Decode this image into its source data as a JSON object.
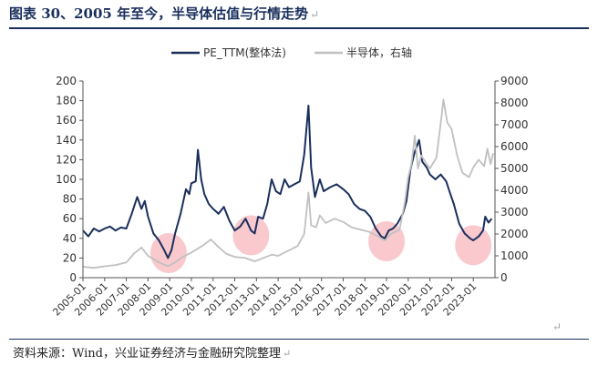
{
  "title": "图表 30、2005 年至今，半导体估值与行情走势",
  "source_note": "资料来源：Wind，兴业证券经济与金融研究院整理",
  "paragraph_mark": "↵",
  "colors": {
    "pe": "#1a2f5c",
    "index": "#c0c0c0",
    "highlight": "#f7b7bd",
    "title": "#1a2f5c"
  },
  "chart_data": {
    "type": "line",
    "title": "",
    "legend_position": "top-center",
    "x_ticks": [
      "2005-01",
      "2006-01",
      "2007-01",
      "2008-01",
      "2009-01",
      "2010-01",
      "2011-01",
      "2012-01",
      "2013-01",
      "2014-01",
      "2015-01",
      "2016-01",
      "2017-01",
      "2018-01",
      "2019-01",
      "2020-01",
      "2021-01",
      "2022-01",
      "2023-01"
    ],
    "y_left": {
      "min": 0,
      "max": 200,
      "step": 20,
      "ticks": [
        "0",
        "20",
        "40",
        "60",
        "80",
        "100",
        "120",
        "140",
        "160",
        "180",
        "200"
      ]
    },
    "y_right": {
      "min": 0,
      "max": 9000,
      "step": 1000,
      "ticks": [
        "0",
        "1000",
        "2000",
        "3000",
        "4000",
        "5000",
        "6000",
        "7000",
        "8000",
        "9000"
      ]
    },
    "series": [
      {
        "name": "PE_TTM(整体法)",
        "axis": "left",
        "color": "#1a2f5c",
        "points": [
          [
            2005.0,
            48
          ],
          [
            2005.25,
            42
          ],
          [
            2005.5,
            50
          ],
          [
            2005.75,
            47
          ],
          [
            2006.0,
            50
          ],
          [
            2006.25,
            52
          ],
          [
            2006.5,
            48
          ],
          [
            2006.75,
            51
          ],
          [
            2007.0,
            50
          ],
          [
            2007.25,
            65
          ],
          [
            2007.5,
            82
          ],
          [
            2007.7,
            70
          ],
          [
            2007.85,
            78
          ],
          [
            2008.0,
            62
          ],
          [
            2008.25,
            45
          ],
          [
            2008.5,
            38
          ],
          [
            2008.75,
            28
          ],
          [
            2008.92,
            20
          ],
          [
            2009.08,
            28
          ],
          [
            2009.25,
            45
          ],
          [
            2009.5,
            65
          ],
          [
            2009.75,
            90
          ],
          [
            2009.9,
            85
          ],
          [
            2010.0,
            96
          ],
          [
            2010.2,
            98
          ],
          [
            2010.3,
            130
          ],
          [
            2010.45,
            100
          ],
          [
            2010.6,
            85
          ],
          [
            2010.8,
            75
          ],
          [
            2011.0,
            70
          ],
          [
            2011.25,
            65
          ],
          [
            2011.5,
            72
          ],
          [
            2011.75,
            58
          ],
          [
            2012.0,
            48
          ],
          [
            2012.25,
            52
          ],
          [
            2012.5,
            60
          ],
          [
            2012.75,
            48
          ],
          [
            2012.92,
            45
          ],
          [
            2013.08,
            62
          ],
          [
            2013.3,
            60
          ],
          [
            2013.5,
            75
          ],
          [
            2013.7,
            100
          ],
          [
            2013.9,
            88
          ],
          [
            2014.1,
            85
          ],
          [
            2014.3,
            100
          ],
          [
            2014.5,
            92
          ],
          [
            2014.75,
            95
          ],
          [
            2015.0,
            98
          ],
          [
            2015.2,
            125
          ],
          [
            2015.4,
            175
          ],
          [
            2015.52,
            112
          ],
          [
            2015.7,
            82
          ],
          [
            2015.92,
            100
          ],
          [
            2016.1,
            88
          ],
          [
            2016.4,
            92
          ],
          [
            2016.7,
            95
          ],
          [
            2017.0,
            90
          ],
          [
            2017.25,
            85
          ],
          [
            2017.5,
            75
          ],
          [
            2017.75,
            70
          ],
          [
            2018.0,
            68
          ],
          [
            2018.25,
            62
          ],
          [
            2018.5,
            50
          ],
          [
            2018.75,
            42
          ],
          [
            2018.92,
            40
          ],
          [
            2019.1,
            48
          ],
          [
            2019.3,
            50
          ],
          [
            2019.5,
            55
          ],
          [
            2019.75,
            65
          ],
          [
            2019.92,
            78
          ],
          [
            2020.1,
            110
          ],
          [
            2020.3,
            128
          ],
          [
            2020.5,
            140
          ],
          [
            2020.65,
            118
          ],
          [
            2020.85,
            112
          ],
          [
            2021.0,
            105
          ],
          [
            2021.25,
            100
          ],
          [
            2021.5,
            105
          ],
          [
            2021.75,
            98
          ],
          [
            2021.9,
            88
          ],
          [
            2022.1,
            75
          ],
          [
            2022.35,
            55
          ],
          [
            2022.6,
            45
          ],
          [
            2022.85,
            40
          ],
          [
            2023.0,
            38
          ],
          [
            2023.25,
            42
          ],
          [
            2023.45,
            48
          ],
          [
            2023.55,
            62
          ],
          [
            2023.7,
            56
          ],
          [
            2023.85,
            60
          ]
        ]
      },
      {
        "name": "半导体，右轴",
        "axis": "right",
        "color": "#c0c0c0",
        "points": [
          [
            2005.0,
            500
          ],
          [
            2005.5,
            450
          ],
          [
            2006.0,
            520
          ],
          [
            2006.5,
            580
          ],
          [
            2007.0,
            700
          ],
          [
            2007.35,
            1100
          ],
          [
            2007.7,
            1380
          ],
          [
            2008.0,
            1000
          ],
          [
            2008.5,
            700
          ],
          [
            2008.92,
            520
          ],
          [
            2009.25,
            700
          ],
          [
            2009.6,
            950
          ],
          [
            2010.0,
            1150
          ],
          [
            2010.5,
            1450
          ],
          [
            2010.9,
            1750
          ],
          [
            2011.2,
            1450
          ],
          [
            2011.6,
            1100
          ],
          [
            2012.0,
            950
          ],
          [
            2012.5,
            900
          ],
          [
            2012.92,
            750
          ],
          [
            2013.3,
            900
          ],
          [
            2013.7,
            1050
          ],
          [
            2014.0,
            1000
          ],
          [
            2014.5,
            1250
          ],
          [
            2014.9,
            1450
          ],
          [
            2015.2,
            2000
          ],
          [
            2015.4,
            3900
          ],
          [
            2015.52,
            2400
          ],
          [
            2015.75,
            2300
          ],
          [
            2015.92,
            2850
          ],
          [
            2016.2,
            2500
          ],
          [
            2016.6,
            2700
          ],
          [
            2017.0,
            2550
          ],
          [
            2017.4,
            2300
          ],
          [
            2017.8,
            2200
          ],
          [
            2018.2,
            2100
          ],
          [
            2018.6,
            1900
          ],
          [
            2018.92,
            1700
          ],
          [
            2019.2,
            2000
          ],
          [
            2019.6,
            2200
          ],
          [
            2019.85,
            3500
          ],
          [
            2020.0,
            4600
          ],
          [
            2020.15,
            5200
          ],
          [
            2020.3,
            6500
          ],
          [
            2020.45,
            5000
          ],
          [
            2020.6,
            5600
          ],
          [
            2020.85,
            5200
          ],
          [
            2021.0,
            5000
          ],
          [
            2021.3,
            5500
          ],
          [
            2021.55,
            7500
          ],
          [
            2021.62,
            8150
          ],
          [
            2021.8,
            7100
          ],
          [
            2022.0,
            6800
          ],
          [
            2022.25,
            5600
          ],
          [
            2022.5,
            4800
          ],
          [
            2022.8,
            4600
          ],
          [
            2023.0,
            5050
          ],
          [
            2023.25,
            5400
          ],
          [
            2023.5,
            5100
          ],
          [
            2023.65,
            5900
          ],
          [
            2023.8,
            5200
          ],
          [
            2023.92,
            5700
          ]
        ]
      }
    ],
    "highlights": [
      {
        "x": 2008.95,
        "y": 25
      },
      {
        "x": 2012.75,
        "y": 43
      },
      {
        "x": 2019.0,
        "y": 37
      },
      {
        "x": 2023.0,
        "y": 33
      }
    ]
  }
}
